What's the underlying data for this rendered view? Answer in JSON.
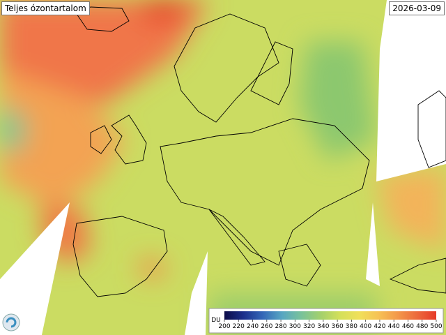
{
  "header": {
    "title": "Teljes ózontartalom",
    "date": "2026-03-09"
  },
  "legend": {
    "unit": "DU",
    "ticks": [
      200,
      220,
      240,
      260,
      280,
      300,
      320,
      340,
      360,
      380,
      400,
      420,
      440,
      460,
      480,
      500
    ],
    "colors": [
      "#0c0c48",
      "#1b2f8c",
      "#3468b8",
      "#57a6c2",
      "#79c29a",
      "#a3d06c",
      "#d4e05a",
      "#f0e05a",
      "#f6c255",
      "#f3984a",
      "#ec6a3c",
      "#e63a28"
    ]
  }
}
